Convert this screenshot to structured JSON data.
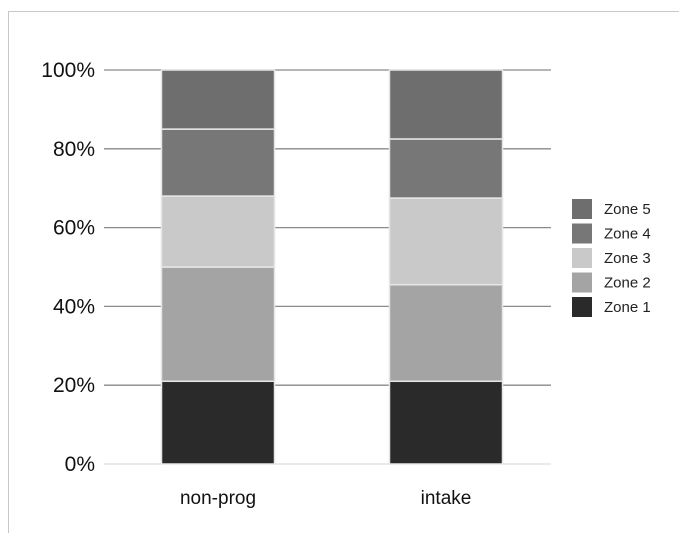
{
  "chart_data": {
    "type": "bar",
    "stacked": true,
    "title": "",
    "xlabel": "",
    "ylabel": "",
    "categories": [
      "non-prog",
      "intake"
    ],
    "series": [
      {
        "name": "Zone 1",
        "values": [
          21,
          21
        ],
        "color": "#2a2a2a"
      },
      {
        "name": "Zone 2",
        "values": [
          29,
          24.5
        ],
        "color": "#a4a4a4"
      },
      {
        "name": "Zone 3",
        "values": [
          18,
          22
        ],
        "color": "#c9c9c9"
      },
      {
        "name": "Zone 4",
        "values": [
          17,
          15
        ],
        "color": "#777777"
      },
      {
        "name": "Zone 5",
        "values": [
          15,
          17.5
        ],
        "color": "#6e6e6e"
      }
    ],
    "ylim": [
      0,
      100
    ],
    "yticks": [
      "0%",
      "20%",
      "40%",
      "60%",
      "80%",
      "100%"
    ],
    "grid": true,
    "legend": "right"
  }
}
